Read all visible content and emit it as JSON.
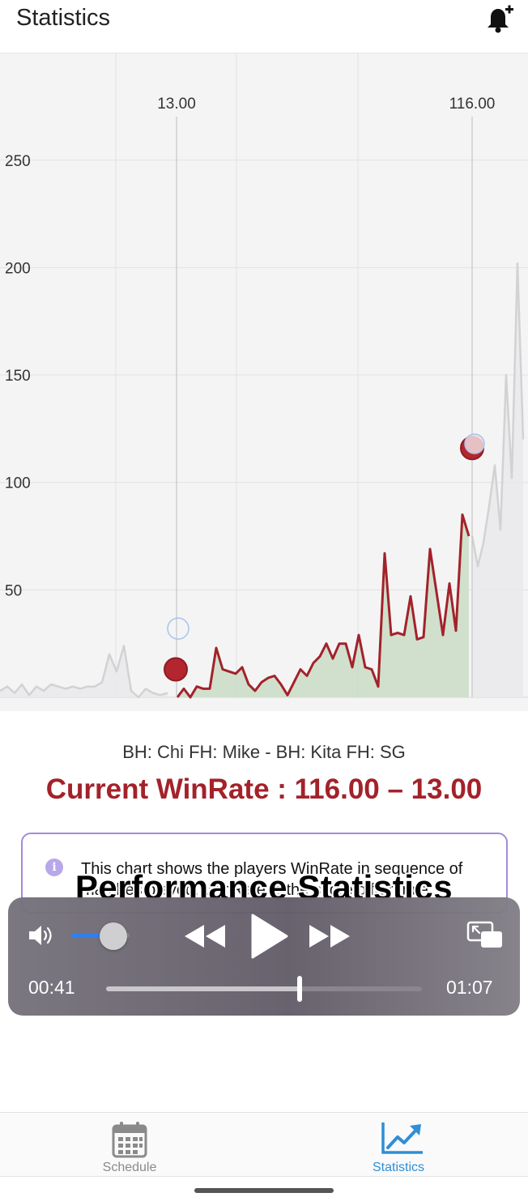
{
  "header": {
    "title": "Statistics",
    "bell_icon": "bell-plus-icon"
  },
  "chart_data": {
    "type": "area",
    "ylim": [
      0,
      262
    ],
    "yticks": [
      "250",
      "200",
      "150",
      "100",
      "50"
    ],
    "ytick_values": [
      250,
      200,
      150,
      100,
      50
    ],
    "markers": [
      {
        "label": "13.00",
        "value": 13
      },
      {
        "label": "116.00",
        "value": 116
      }
    ],
    "series": [
      {
        "color": "#a3222a",
        "fill": "#c9dcc5",
        "values": [
          0,
          4,
          0,
          5,
          4,
          4,
          23,
          13,
          12,
          11,
          14,
          6,
          3,
          7,
          9,
          10,
          6,
          1,
          7,
          13,
          10,
          16,
          19,
          25,
          18,
          25,
          25,
          14,
          29,
          14,
          13,
          5,
          67,
          29,
          30,
          29,
          47,
          27,
          28,
          69,
          49,
          29,
          53,
          31,
          85,
          75
        ]
      },
      {
        "color": "#d2d2d4",
        "fill": "#e9e9eb",
        "values": [
          3,
          5,
          2,
          6,
          1,
          5,
          3,
          6,
          5,
          4,
          5,
          4,
          5,
          5,
          7,
          20,
          12,
          24,
          3,
          0,
          4,
          2,
          1,
          2
        ]
      },
      {
        "color": "#d2d2d4",
        "fill": "#e9e9eb",
        "values": [
          75,
          61,
          72,
          89,
          108,
          78,
          150,
          102,
          202,
          120
        ]
      }
    ]
  },
  "info": {
    "matchup": "BH: Chi FH: Mike - BH: Kita FH: SG",
    "winrate": "Current WinRate : 116.00 – 13.00",
    "info_icon": "info-icon",
    "text": "This chart shows the players WinRate in sequence of matches played. WinRate is the score difference."
  },
  "caption": "Performance Statistics",
  "player": {
    "current_time": "00:41",
    "total_time": "01:07",
    "progress": 0.6119,
    "volume": 0.55,
    "icons": [
      "volume-icon",
      "rewind-icon",
      "play-icon",
      "fast-forward-icon",
      "picture-in-picture-icon"
    ]
  },
  "tabs": [
    {
      "label": "Schedule",
      "icon": "calendar-icon",
      "active": false
    },
    {
      "label": "Statistics",
      "icon": "chart-line-icon",
      "active": true
    }
  ]
}
